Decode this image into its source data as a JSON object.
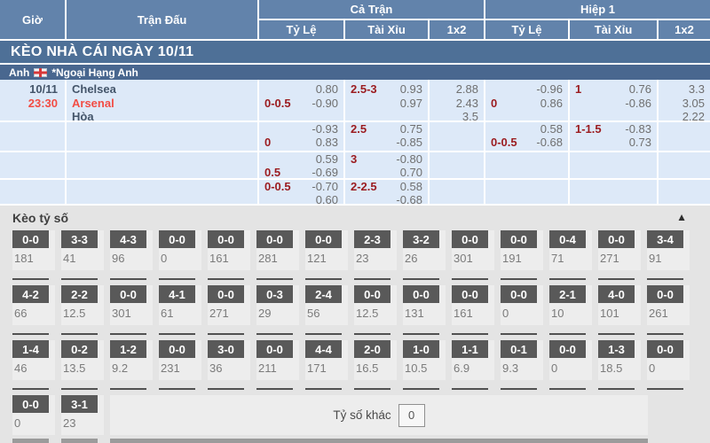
{
  "table": {
    "col_headers": {
      "time": "Giờ",
      "match": "Trận Đấu",
      "full_time": "Cả Trận",
      "half1": "Hiệp 1",
      "handicap": "Tỷ Lệ",
      "over_under": "Tài Xỉu",
      "x12": "1x2"
    },
    "banner": "KÈO NHÀ CÁI NGÀY 10/11",
    "league": {
      "country": "Anh",
      "flag": "england-flag",
      "name": "*Ngoại Hạng Anh"
    },
    "match": {
      "date": "10/11",
      "time": "23:30",
      "home": "Chelsea",
      "away": "Arsenal",
      "draw": "Hòa"
    },
    "odds_rows": [
      {
        "ft_hdp": {
          "line": "0-0.5",
          "pos": 2,
          "odds": [
            "0.80",
            "-0.90"
          ]
        },
        "ft_ou": {
          "line": "2.5-3",
          "pos": 1,
          "odds": [
            "0.93",
            "0.97"
          ]
        },
        "ft_1x2": [
          "2.88",
          "2.43",
          "3.5"
        ],
        "h1_hdp": {
          "line": "0",
          "pos": 2,
          "odds": [
            "-0.96",
            "0.86"
          ]
        },
        "h1_ou": {
          "line": "1",
          "pos": 1,
          "odds": [
            "0.76",
            "-0.86"
          ]
        },
        "h1_1x2": [
          "3.3",
          "3.05",
          "2.22"
        ]
      },
      {
        "ft_hdp": {
          "line": "0",
          "pos": 2,
          "odds": [
            "-0.93",
            "0.83"
          ]
        },
        "ft_ou": {
          "line": "2.5",
          "pos": 1,
          "odds": [
            "0.75",
            "-0.85"
          ]
        },
        "ft_1x2": [],
        "h1_hdp": {
          "line": "0-0.5",
          "pos": 2,
          "odds": [
            "0.58",
            "-0.68"
          ]
        },
        "h1_ou": {
          "line": "1-1.5",
          "pos": 1,
          "odds": [
            "-0.83",
            "0.73"
          ]
        },
        "h1_1x2": []
      },
      {
        "ft_hdp": {
          "line": "0.5",
          "pos": 2,
          "odds": [
            "0.59",
            "-0.69"
          ]
        },
        "ft_ou": {
          "line": "3",
          "pos": 1,
          "odds": [
            "-0.80",
            "0.70"
          ]
        },
        "ft_1x2": [],
        "h1_hdp": null,
        "h1_ou": null,
        "h1_1x2": []
      },
      {
        "ft_hdp": {
          "line": "0-0.5",
          "pos": 1,
          "odds": [
            "-0.70",
            "0.60"
          ]
        },
        "ft_ou": {
          "line": "2-2.5",
          "pos": 1,
          "odds": [
            "0.58",
            "-0.68"
          ]
        },
        "ft_1x2": [],
        "h1_hdp": null,
        "h1_ou": null,
        "h1_1x2": []
      }
    ]
  },
  "score_section": {
    "title": "Kèo tỷ số",
    "collapse_icon": "▲",
    "rows": [
      [
        {
          "score": "0-0",
          "odds": "181"
        },
        {
          "score": "3-3",
          "odds": "41"
        },
        {
          "score": "4-3",
          "odds": "96"
        },
        {
          "score": "0-0",
          "odds": "0"
        },
        {
          "score": "0-0",
          "odds": "161"
        },
        {
          "score": "0-0",
          "odds": "281"
        },
        {
          "score": "0-0",
          "odds": "121"
        },
        {
          "score": "2-3",
          "odds": "23"
        },
        {
          "score": "3-2",
          "odds": "26"
        },
        {
          "score": "0-0",
          "odds": "301"
        },
        {
          "score": "0-0",
          "odds": "191"
        },
        {
          "score": "0-4",
          "odds": "71"
        },
        {
          "score": "0-0",
          "odds": "271"
        },
        {
          "score": "3-4",
          "odds": "91"
        }
      ],
      [
        {
          "score": "4-2",
          "odds": "66"
        },
        {
          "score": "2-2",
          "odds": "12.5"
        },
        {
          "score": "0-0",
          "odds": "301"
        },
        {
          "score": "4-1",
          "odds": "61"
        },
        {
          "score": "0-0",
          "odds": "271"
        },
        {
          "score": "0-3",
          "odds": "29"
        },
        {
          "score": "2-4",
          "odds": "56"
        },
        {
          "score": "0-0",
          "odds": "12.5"
        },
        {
          "score": "0-0",
          "odds": "131"
        },
        {
          "score": "0-0",
          "odds": "161"
        },
        {
          "score": "0-0",
          "odds": "0"
        },
        {
          "score": "2-1",
          "odds": "10"
        },
        {
          "score": "4-0",
          "odds": "101"
        },
        {
          "score": "0-0",
          "odds": "261"
        }
      ],
      [
        {
          "score": "1-4",
          "odds": "46"
        },
        {
          "score": "0-2",
          "odds": "13.5"
        },
        {
          "score": "1-2",
          "odds": "9.2"
        },
        {
          "score": "0-0",
          "odds": "231"
        },
        {
          "score": "3-0",
          "odds": "36"
        },
        {
          "score": "0-0",
          "odds": "211"
        },
        {
          "score": "4-4",
          "odds": "171"
        },
        {
          "score": "2-0",
          "odds": "16.5"
        },
        {
          "score": "1-0",
          "odds": "10.5"
        },
        {
          "score": "1-1",
          "odds": "6.9"
        },
        {
          "score": "0-1",
          "odds": "9.3"
        },
        {
          "score": "0-0",
          "odds": "0"
        },
        {
          "score": "1-3",
          "odds": "18.5"
        },
        {
          "score": "0-0",
          "odds": "0"
        }
      ],
      [
        {
          "score": "0-0",
          "odds": "0"
        },
        {
          "score": "3-1",
          "odds": "23"
        }
      ]
    ],
    "other_score": {
      "label": "Tỷ số khác",
      "value": "0"
    }
  },
  "colors": {
    "header_blue": "#6283ab",
    "banner_blue": "#4e7097",
    "league_blue": "#49678f",
    "row_blue": "#dde9f8",
    "team_red": "#f24c44",
    "handicap_maroon": "#9b1b1f",
    "score_box_gray": "#595959",
    "section_gray": "#e4e4e4"
  }
}
